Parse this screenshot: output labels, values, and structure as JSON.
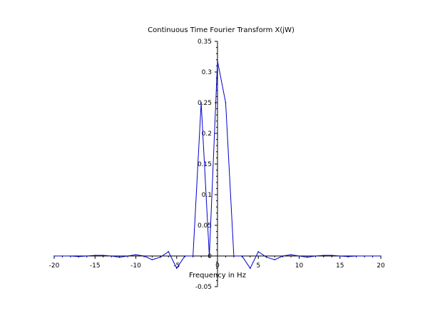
{
  "chart_data": {
    "type": "line",
    "title": "Continuous Time Fourier Transform X(jW)",
    "xlabel": "Frequency in Hz",
    "ylabel": "",
    "xlim": [
      -20,
      20
    ],
    "ylim": [
      -0.05,
      0.35
    ],
    "x_ticks": [
      -20,
      -15,
      -10,
      -5,
      0,
      5,
      10,
      15,
      20
    ],
    "x_tick_labels": [
      "-20",
      "-15",
      "-10",
      "-5",
      "0",
      "5",
      "10",
      "15",
      "20"
    ],
    "y_ticks": [
      -0.05,
      0,
      0.05,
      0.1,
      0.15,
      0.2,
      0.25,
      0.3,
      0.35
    ],
    "y_tick_labels": [
      "-0.05",
      "0",
      "0.05",
      "0.1",
      "0.15",
      "0.2",
      "0.25",
      "0.3",
      "0.35"
    ],
    "grid": false,
    "series": [
      {
        "color": "#0000cc",
        "x": [
          -20,
          -19,
          -18,
          -17,
          -16,
          -15,
          -14,
          -13,
          -12,
          -11,
          -10,
          -9,
          -8,
          -7,
          -6,
          -5,
          -4,
          -3,
          -2,
          -1,
          0,
          1,
          2,
          3,
          4,
          5,
          6,
          7,
          8,
          9,
          10,
          11,
          12,
          13,
          14,
          15,
          16,
          17,
          18,
          19,
          20
        ],
        "y": [
          0.0,
          0.0,
          0.0,
          -0.001,
          0.0,
          0.001,
          0.001,
          0.0,
          -0.002,
          0.0,
          0.002,
          0.0,
          -0.006,
          -0.002,
          0.007,
          -0.02,
          0.0,
          0.0,
          0.25,
          0.0,
          0.318,
          0.25,
          0.0,
          0.0,
          -0.02,
          0.007,
          -0.002,
          -0.006,
          0.0,
          0.002,
          0.0,
          -0.002,
          0.0,
          0.001,
          0.001,
          0.0,
          -0.001,
          0.0,
          0.0,
          0.0,
          0.0
        ]
      }
    ]
  }
}
